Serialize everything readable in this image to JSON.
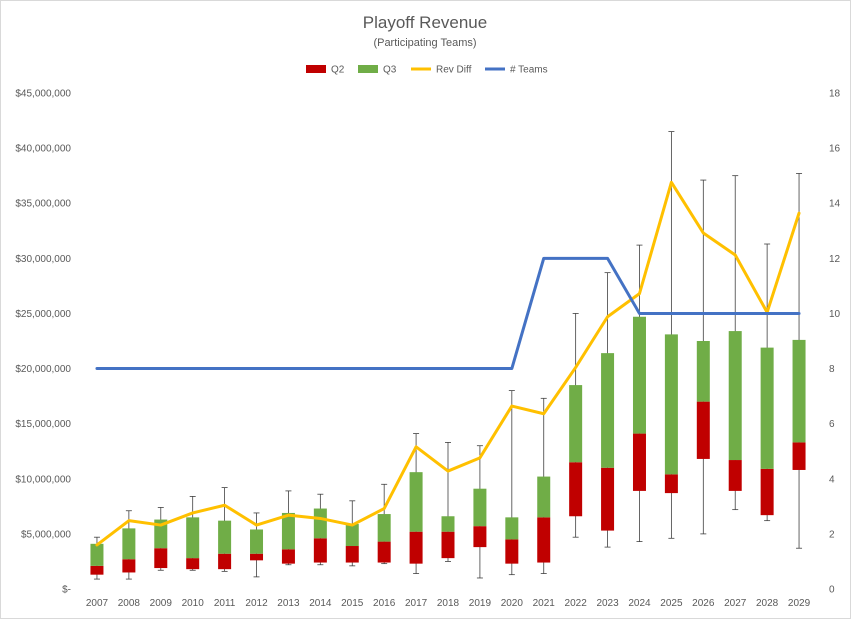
{
  "chart_data": {
    "type": "bar",
    "title": "Playoff Revenue",
    "subtitle": "(Participating Teams)",
    "categories": [
      "2007",
      "2008",
      "2009",
      "2010",
      "2011",
      "2012",
      "2013",
      "2014",
      "2015",
      "2016",
      "2017",
      "2018",
      "2019",
      "2020",
      "2021",
      "2022",
      "2023",
      "2024",
      "2025",
      "2026",
      "2027",
      "2028",
      "2029"
    ],
    "y_left": {
      "min": 0,
      "max": 45000000,
      "ticks": [
        0,
        5000000,
        10000000,
        15000000,
        20000000,
        25000000,
        30000000,
        35000000,
        40000000,
        45000000
      ],
      "tick_labels": [
        "$-",
        "$5,000,000",
        "$10,000,000",
        "$15,000,000",
        "$20,000,000",
        "$25,000,000",
        "$30,000,000",
        "$35,000,000",
        "$40,000,000",
        "$45,000,000"
      ]
    },
    "y_right": {
      "min": 0,
      "max": 18,
      "ticks": [
        0,
        2,
        4,
        6,
        8,
        10,
        12,
        14,
        16,
        18
      ],
      "tick_labels": [
        "0",
        "2",
        "4",
        "6",
        "8",
        "10",
        "12",
        "14",
        "16",
        "18"
      ]
    },
    "legend": {
      "position": "top",
      "items": [
        {
          "name": "Q2",
          "color": "#c00000",
          "kind": "box"
        },
        {
          "name": "Q3",
          "color": "#70ad47",
          "kind": "box"
        },
        {
          "name": "Rev Diff",
          "color": "#ffc000",
          "kind": "line"
        },
        {
          "name": "# Teams",
          "color": "#4472c4",
          "kind": "line"
        }
      ]
    },
    "box_series": {
      "min": [
        900000,
        900000,
        1700000,
        1700000,
        1600000,
        1100000,
        2200000,
        2200000,
        2100000,
        2300000,
        1400000,
        2500000,
        1000000,
        1300000,
        1400000,
        4700000,
        3800000,
        4300000,
        4600000,
        5000000,
        7200000,
        6200000,
        3700000
      ],
      "q1": [
        1300000,
        1500000,
        1900000,
        1800000,
        1800000,
        2600000,
        2300000,
        2400000,
        2400000,
        2400000,
        2300000,
        2800000,
        3800000,
        2300000,
        2400000,
        6600000,
        5300000,
        8900000,
        8700000,
        11800000,
        8900000,
        6700000,
        10800000
      ],
      "median": [
        2100000,
        2700000,
        3700000,
        2800000,
        3200000,
        3200000,
        3600000,
        4600000,
        3900000,
        4300000,
        5200000,
        5200000,
        5700000,
        4500000,
        6500000,
        11500000,
        11000000,
        14100000,
        10400000,
        17000000,
        11700000,
        10900000,
        13300000
      ],
      "q3": [
        4100000,
        5500000,
        6300000,
        6500000,
        6200000,
        5400000,
        6900000,
        7300000,
        5900000,
        6800000,
        10600000,
        6600000,
        9100000,
        6500000,
        10200000,
        18500000,
        21400000,
        24700000,
        23100000,
        22500000,
        23400000,
        21900000,
        22600000
      ],
      "max": [
        4700000,
        7100000,
        7400000,
        8400000,
        9200000,
        6900000,
        8900000,
        8600000,
        8000000,
        9500000,
        14100000,
        13300000,
        13000000,
        18000000,
        17300000,
        25000000,
        28700000,
        31200000,
        41500000,
        37100000,
        37500000,
        31300000,
        37700000
      ]
    },
    "rev_diff": [
      4000000,
      6200000,
      5800000,
      6900000,
      7600000,
      5800000,
      6700000,
      6400000,
      5800000,
      7300000,
      12900000,
      10700000,
      11900000,
      16600000,
      15900000,
      20100000,
      24700000,
      26800000,
      36900000,
      32300000,
      30300000,
      25100000,
      34100000
    ],
    "teams": [
      8,
      8,
      8,
      8,
      8,
      8,
      8,
      8,
      8,
      8,
      8,
      8,
      8,
      8,
      12,
      12,
      12,
      10,
      10,
      10,
      10,
      10,
      10
    ],
    "grid": false
  }
}
